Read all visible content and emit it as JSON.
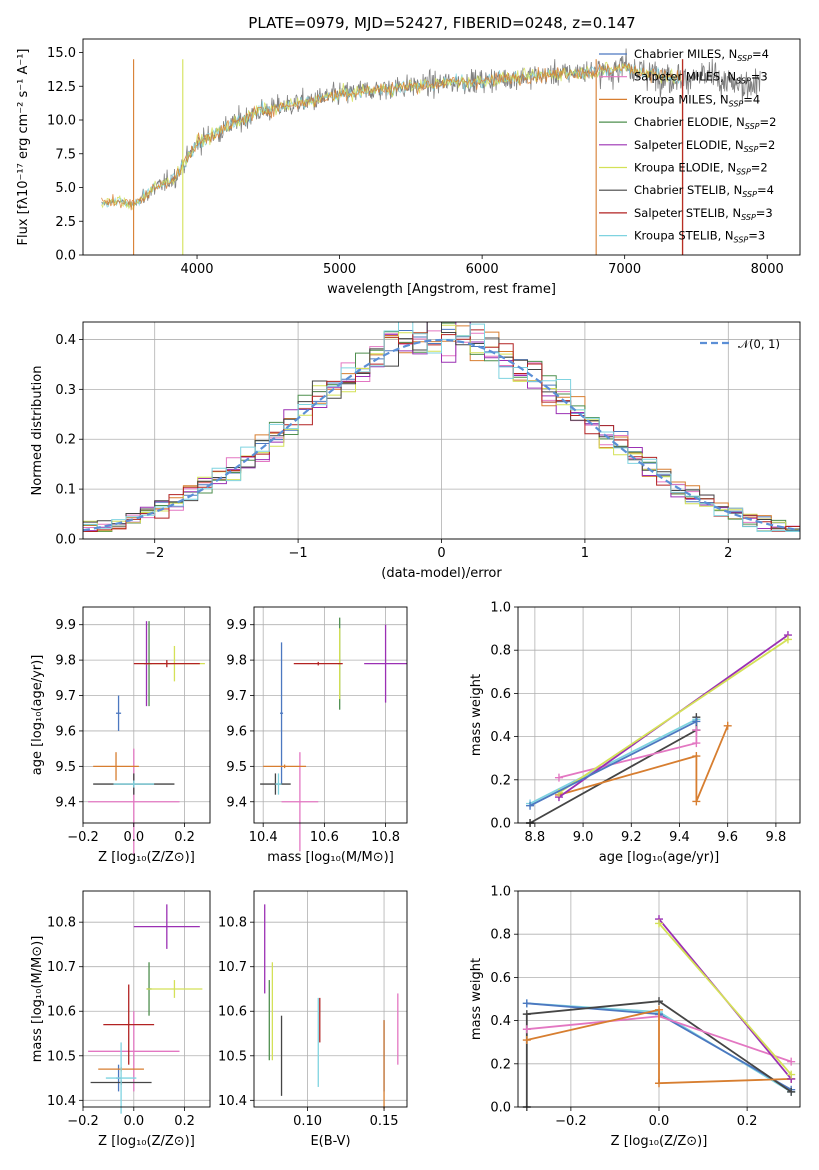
{
  "figure": {
    "title": "PLATE=0979, MJD=52427, FIBERID=0248, z=0.147"
  },
  "colors": {
    "spectrum_data": "#808080",
    "chabrier_miles": "#4c78c0",
    "salpeter_miles": "#e377c2",
    "kroupa_miles": "#d77e30",
    "chabrier_elodie": "#4e8f4e",
    "salpeter_elodie": "#9b30b4",
    "kroupa_elodie": "#d4e157",
    "chabrier_stelib": "#454545",
    "salpeter_stelib": "#b22222",
    "kroupa_stelib": "#7fd3e0",
    "gaussian": "#5b8fd6",
    "grid": "#b0b0b0"
  },
  "legend_models": [
    {
      "key": "chabrier_miles",
      "label": "Chabrier MILES, N",
      "sub": "SSP",
      "val": "=4"
    },
    {
      "key": "salpeter_miles",
      "label": "Salpeter MILES, N",
      "sub": "SSP",
      "val": "=3"
    },
    {
      "key": "kroupa_miles",
      "label": "Kroupa MILES, N",
      "sub": "SSP",
      "val": "=4"
    },
    {
      "key": "chabrier_elodie",
      "label": "Chabrier ELODIE, N",
      "sub": "SSP",
      "val": "=2"
    },
    {
      "key": "salpeter_elodie",
      "label": "Salpeter ELODIE, N",
      "sub": "SSP",
      "val": "=2"
    },
    {
      "key": "kroupa_elodie",
      "label": "Kroupa ELODIE, N",
      "sub": "SSP",
      "val": "=2"
    },
    {
      "key": "chabrier_stelib",
      "label": "Chabrier STELIB, N",
      "sub": "SSP",
      "val": "=4"
    },
    {
      "key": "salpeter_stelib",
      "label": "Salpeter STELIB, N",
      "sub": "SSP",
      "val": "=3"
    },
    {
      "key": "kroupa_stelib",
      "label": "Kroupa STELIB, N",
      "sub": "SSP",
      "val": "=3"
    }
  ],
  "chart_data": [
    {
      "id": "spectrum",
      "type": "line",
      "xlabel": "wavelength [Angstrom, rest frame]",
      "ylabel": "Flux [fλ10⁻¹⁷ erg cm⁻² s⁻¹ A⁻¹]",
      "xlim": [
        3200,
        8230
      ],
      "ylim": [
        0,
        16
      ],
      "xticks": [
        4000,
        5000,
        6000,
        7000,
        8000
      ],
      "yticks": [
        0.0,
        2.5,
        5.0,
        7.5,
        10.0,
        12.5,
        15.0
      ],
      "ytick_labels": [
        "0.0",
        "2.5",
        "5.0",
        "7.5",
        "10.0",
        "12.5",
        "15.0"
      ],
      "data_anchor_points": {
        "wavelength": [
          3330,
          3450,
          3550,
          3700,
          3850,
          4000,
          4200,
          4400,
          4600,
          4800,
          5000,
          5200,
          5400,
          5600,
          5800,
          6000,
          6200,
          6400,
          6600,
          6800,
          7000,
          7200,
          7400,
          7600,
          7800,
          7950
        ],
        "flux": [
          3.8,
          4.0,
          3.7,
          4.9,
          5.8,
          8.3,
          9.4,
          10.5,
          11.0,
          11.4,
          11.9,
          12.2,
          12.4,
          12.6,
          12.8,
          12.9,
          13.1,
          13.3,
          13.5,
          13.6,
          13.9,
          13.4,
          13.1,
          13.2,
          12.5,
          12.9
        ]
      },
      "model_range": [
        3330,
        7400
      ],
      "grid": false,
      "legend_placement": "right"
    },
    {
      "id": "residual-hist",
      "type": "line",
      "xlabel": "(data-model)/error",
      "ylabel": "Normed distribution",
      "xlim": [
        -2.5,
        2.5
      ],
      "ylim": [
        0,
        0.435
      ],
      "xticks": [
        -2,
        -1,
        0,
        1,
        2
      ],
      "xtick_labels": [
        "−2",
        "−1",
        "0",
        "1",
        "2"
      ],
      "yticks": [
        0.0,
        0.1,
        0.2,
        0.3,
        0.4
      ],
      "ytick_labels": [
        "0.0",
        "0.1",
        "0.2",
        "0.3",
        "0.4"
      ],
      "bin_width": 0.1,
      "gaussian_label": "𝒩(0, 1)",
      "grid": true,
      "legend_placement": "top-right"
    },
    {
      "id": "age-vs-z",
      "type": "scatter",
      "xlabel": "Z [log₁₀(Z/Z⊙)]",
      "ylabel": "age  [log₁₀(age/yr)]",
      "xlim": [
        -0.2,
        0.3
      ],
      "ylim": [
        9.34,
        9.95
      ],
      "xticks": [
        -0.2,
        0.0,
        0.2
      ],
      "xtick_labels": [
        "−0.2",
        "0.0",
        "0.2"
      ],
      "yticks": [
        9.4,
        9.5,
        9.6,
        9.7,
        9.8,
        9.9
      ],
      "ytick_labels": [
        "9.4",
        "9.5",
        "9.6",
        "9.7",
        "9.8",
        "9.9"
      ],
      "points": [
        {
          "key": "chabrier_miles",
          "x": -0.06,
          "y": 9.65,
          "xerr": 0.01,
          "yerr": 0.05
        },
        {
          "key": "salpeter_miles",
          "x": 0.0,
          "y": 9.4,
          "xerr": 0.18,
          "yerr": 0.15
        },
        {
          "key": "kroupa_miles",
          "x": -0.07,
          "y": 9.5,
          "xerr": 0.09,
          "yerr": 0.04
        },
        {
          "key": "chabrier_elodie",
          "x": 0.06,
          "y": 9.79,
          "xerr": 0.01,
          "yerr": 0.12
        },
        {
          "key": "salpeter_elodie",
          "x": 0.05,
          "y": 9.79,
          "xerr": 0.01,
          "yerr": 0.12
        },
        {
          "key": "kroupa_elodie",
          "x": 0.16,
          "y": 9.79,
          "xerr": 0.12,
          "yerr": 0.05
        },
        {
          "key": "chabrier_stelib",
          "x": 0.0,
          "y": 9.45,
          "xerr": 0.16,
          "yerr": 0.03
        },
        {
          "key": "salpeter_stelib",
          "x": 0.13,
          "y": 9.79,
          "xerr": 0.13,
          "yerr": 0.01
        },
        {
          "key": "kroupa_stelib",
          "x": 0.0,
          "y": 9.45,
          "xerr": 0.08,
          "yerr": 0.01
        }
      ],
      "grid": true
    },
    {
      "id": "age-vs-mass",
      "type": "scatter",
      "xlabel": "mass [log₁₀(M/M⊙)]",
      "ylabel": "",
      "xlim": [
        10.37,
        10.87
      ],
      "ylim": [
        9.34,
        9.95
      ],
      "xticks": [
        10.4,
        10.6,
        10.8
      ],
      "xtick_labels": [
        "10.4",
        "10.6",
        "10.8"
      ],
      "yticks": [
        9.4,
        9.5,
        9.6,
        9.7,
        9.8,
        9.9
      ],
      "ytick_labels": [
        "9.4",
        "9.5",
        "9.6",
        "9.7",
        "9.8",
        "9.9"
      ],
      "points": [
        {
          "key": "chabrier_miles",
          "x": 10.46,
          "y": 9.65,
          "xerr": 0.005,
          "yerr": 0.2
        },
        {
          "key": "salpeter_miles",
          "x": 10.52,
          "y": 9.4,
          "xerr": 0.06,
          "yerr": 0.14
        },
        {
          "key": "kroupa_miles",
          "x": 10.47,
          "y": 9.5,
          "xerr": 0.07,
          "yerr": 0.005
        },
        {
          "key": "chabrier_elodie",
          "x": 10.65,
          "y": 9.79,
          "xerr": 0.005,
          "yerr": 0.13
        },
        {
          "key": "salpeter_elodie",
          "x": 10.8,
          "y": 9.79,
          "xerr": 0.07,
          "yerr": 0.11
        },
        {
          "key": "kroupa_elodie",
          "x": 10.65,
          "y": 9.79,
          "xerr": 0.005,
          "yerr": 0.1
        },
        {
          "key": "chabrier_stelib",
          "x": 10.44,
          "y": 9.45,
          "xerr": 0.05,
          "yerr": 0.03
        },
        {
          "key": "salpeter_stelib",
          "x": 10.58,
          "y": 9.79,
          "xerr": 0.08,
          "yerr": 0.005
        },
        {
          "key": "kroupa_stelib",
          "x": 10.45,
          "y": 9.45,
          "xerr": 0.01,
          "yerr": 0.03
        }
      ],
      "grid": true
    },
    {
      "id": "weight-vs-age",
      "type": "line",
      "xlabel": "age  [log₁₀(age/yr)]",
      "ylabel": "mass weight",
      "xlim": [
        8.73,
        9.9
      ],
      "ylim": [
        0,
        1
      ],
      "xticks": [
        8.8,
        9.0,
        9.2,
        9.4,
        9.6,
        9.8
      ],
      "xtick_labels": [
        "8.8",
        "9.0",
        "9.2",
        "9.4",
        "9.6",
        "9.8"
      ],
      "yticks": [
        0.0,
        0.2,
        0.4,
        0.6,
        0.8,
        1.0
      ],
      "ytick_labels": [
        "0.0",
        "0.2",
        "0.4",
        "0.6",
        "0.8",
        "1.0"
      ],
      "series": [
        {
          "key": "kroupa_stelib",
          "x": [
            8.78,
            9.47
          ],
          "y": [
            0.09,
            0.48
          ]
        },
        {
          "key": "chabrier_stelib",
          "x": [
            8.78,
            8.78,
            9.47,
            9.47
          ],
          "y": [
            0.0,
            0.0,
            0.43,
            0.49
          ]
        },
        {
          "key": "salpeter_miles",
          "x": [
            8.9,
            9.47,
            9.47
          ],
          "y": [
            0.21,
            0.37,
            0.43
          ]
        },
        {
          "key": "kroupa_miles",
          "x": [
            8.9,
            9.47,
            9.47,
            9.6
          ],
          "y": [
            0.13,
            0.31,
            0.1,
            0.45
          ]
        },
        {
          "key": "salpeter_elodie",
          "x": [
            8.9,
            9.85
          ],
          "y": [
            0.12,
            0.87
          ]
        },
        {
          "key": "kroupa_elodie",
          "x": [
            8.9,
            9.85
          ],
          "y": [
            0.14,
            0.85
          ]
        },
        {
          "key": "chabrier_miles",
          "x": [
            8.78,
            9.47
          ],
          "y": [
            0.08,
            0.47
          ]
        }
      ],
      "grid": true
    },
    {
      "id": "mass-vs-z",
      "type": "scatter",
      "xlabel": "Z [log₁₀(Z/Z⊙)]",
      "ylabel": "mass [log₁₀(M/M⊙)]",
      "xlim": [
        -0.2,
        0.3
      ],
      "ylim": [
        10.385,
        10.87
      ],
      "xticks": [
        -0.2,
        0.0,
        0.2
      ],
      "xtick_labels": [
        "−0.2",
        "0.0",
        "0.2"
      ],
      "yticks": [
        10.4,
        10.5,
        10.6,
        10.7,
        10.8
      ],
      "ytick_labels": [
        "10.4",
        "10.5",
        "10.6",
        "10.7",
        "10.8"
      ],
      "points": [
        {
          "key": "chabrier_miles",
          "x": -0.06,
          "y": 10.45,
          "xerr": 0.01,
          "yerr": 0.03
        },
        {
          "key": "salpeter_miles",
          "x": 0.0,
          "y": 10.51,
          "xerr": 0.18,
          "yerr": 0.09
        },
        {
          "key": "kroupa_miles",
          "x": -0.05,
          "y": 10.47,
          "xerr": 0.09,
          "yerr": 0.005
        },
        {
          "key": "chabrier_elodie",
          "x": 0.06,
          "y": 10.65,
          "xerr": 0.01,
          "yerr": 0.06
        },
        {
          "key": "salpeter_elodie",
          "x": 0.13,
          "y": 10.79,
          "xerr": 0.13,
          "yerr": 0.05
        },
        {
          "key": "kroupa_elodie",
          "x": 0.16,
          "y": 10.65,
          "xerr": 0.11,
          "yerr": 0.02
        },
        {
          "key": "chabrier_stelib",
          "x": -0.05,
          "y": 10.44,
          "xerr": 0.12,
          "yerr": 0.005
        },
        {
          "key": "salpeter_stelib",
          "x": -0.02,
          "y": 10.57,
          "xerr": 0.1,
          "yerr": 0.09
        },
        {
          "key": "kroupa_stelib",
          "x": -0.05,
          "y": 10.45,
          "xerr": 0.06,
          "yerr": 0.08
        }
      ],
      "grid": true
    },
    {
      "id": "mass-vs-ebv",
      "type": "scatter",
      "xlabel": "E(B-V)",
      "ylabel": "",
      "xlim": [
        0.065,
        0.165
      ],
      "ylim": [
        10.385,
        10.87
      ],
      "xticks": [
        0.1,
        0.15
      ],
      "xtick_labels": [
        "0.10",
        "0.15"
      ],
      "yticks": [
        10.4,
        10.5,
        10.6,
        10.7,
        10.8
      ],
      "ytick_labels": [
        "10.4",
        "10.5",
        "10.6",
        "10.7",
        "10.8"
      ],
      "points": [
        {
          "key": "chabrier_miles",
          "x": 0.15,
          "y": 10.5,
          "xerr": 0,
          "yerr": 0.08
        },
        {
          "key": "salpeter_miles",
          "x": 0.159,
          "y": 10.56,
          "xerr": 0,
          "yerr": 0.08
        },
        {
          "key": "kroupa_miles",
          "x": 0.15,
          "y": 10.48,
          "xerr": 0,
          "yerr": 0.1
        },
        {
          "key": "chabrier_elodie",
          "x": 0.075,
          "y": 10.58,
          "xerr": 0,
          "yerr": 0.09
        },
        {
          "key": "salpeter_elodie",
          "x": 0.072,
          "y": 10.74,
          "xerr": 0,
          "yerr": 0.1
        },
        {
          "key": "kroupa_elodie",
          "x": 0.077,
          "y": 10.6,
          "xerr": 0,
          "yerr": 0.11
        },
        {
          "key": "chabrier_stelib",
          "x": 0.083,
          "y": 10.5,
          "xerr": 0,
          "yerr": 0.09
        },
        {
          "key": "salpeter_stelib",
          "x": 0.108,
          "y": 10.58,
          "xerr": 0,
          "yerr": 0.05
        },
        {
          "key": "kroupa_stelib",
          "x": 0.107,
          "y": 10.53,
          "xerr": 0,
          "yerr": 0.1
        }
      ],
      "grid": true
    },
    {
      "id": "weight-vs-z",
      "type": "line",
      "xlabel": "Z [log₁₀(Z/Z⊙)]",
      "ylabel": "mass weight",
      "xlim": [
        -0.32,
        0.32
      ],
      "ylim": [
        0,
        1
      ],
      "xticks": [
        -0.2,
        0.0,
        0.2
      ],
      "xtick_labels": [
        "−0.2",
        "0.0",
        "0.2"
      ],
      "yticks": [
        0.0,
        0.2,
        0.4,
        0.6,
        0.8,
        1.0
      ],
      "ytick_labels": [
        "0.0",
        "0.2",
        "0.4",
        "0.6",
        "0.8",
        "1.0"
      ],
      "series": [
        {
          "key": "kroupa_stelib",
          "x": [
            -0.3,
            0.0,
            0.3
          ],
          "y": [
            0.48,
            0.44,
            0.07
          ]
        },
        {
          "key": "chabrier_miles",
          "x": [
            -0.3,
            0.0,
            0.3
          ],
          "y": [
            0.48,
            0.43,
            0.08
          ]
        },
        {
          "key": "chabrier_stelib",
          "x": [
            -0.3,
            -0.3,
            0.0,
            0.3
          ],
          "y": [
            0.0,
            0.43,
            0.49,
            0.07
          ]
        },
        {
          "key": "salpeter_miles",
          "x": [
            -0.3,
            0.0,
            0.3
          ],
          "y": [
            0.36,
            0.42,
            0.21
          ]
        },
        {
          "key": "kroupa_miles",
          "x": [
            -0.3,
            0.0,
            0.0,
            0.3
          ],
          "y": [
            0.31,
            0.45,
            0.11,
            0.13
          ]
        },
        {
          "key": "salpeter_elodie",
          "x": [
            0.0,
            0.3
          ],
          "y": [
            0.87,
            0.13
          ]
        },
        {
          "key": "kroupa_elodie",
          "x": [
            0.0,
            0.3
          ],
          "y": [
            0.85,
            0.15
          ]
        }
      ],
      "grid": true
    }
  ]
}
